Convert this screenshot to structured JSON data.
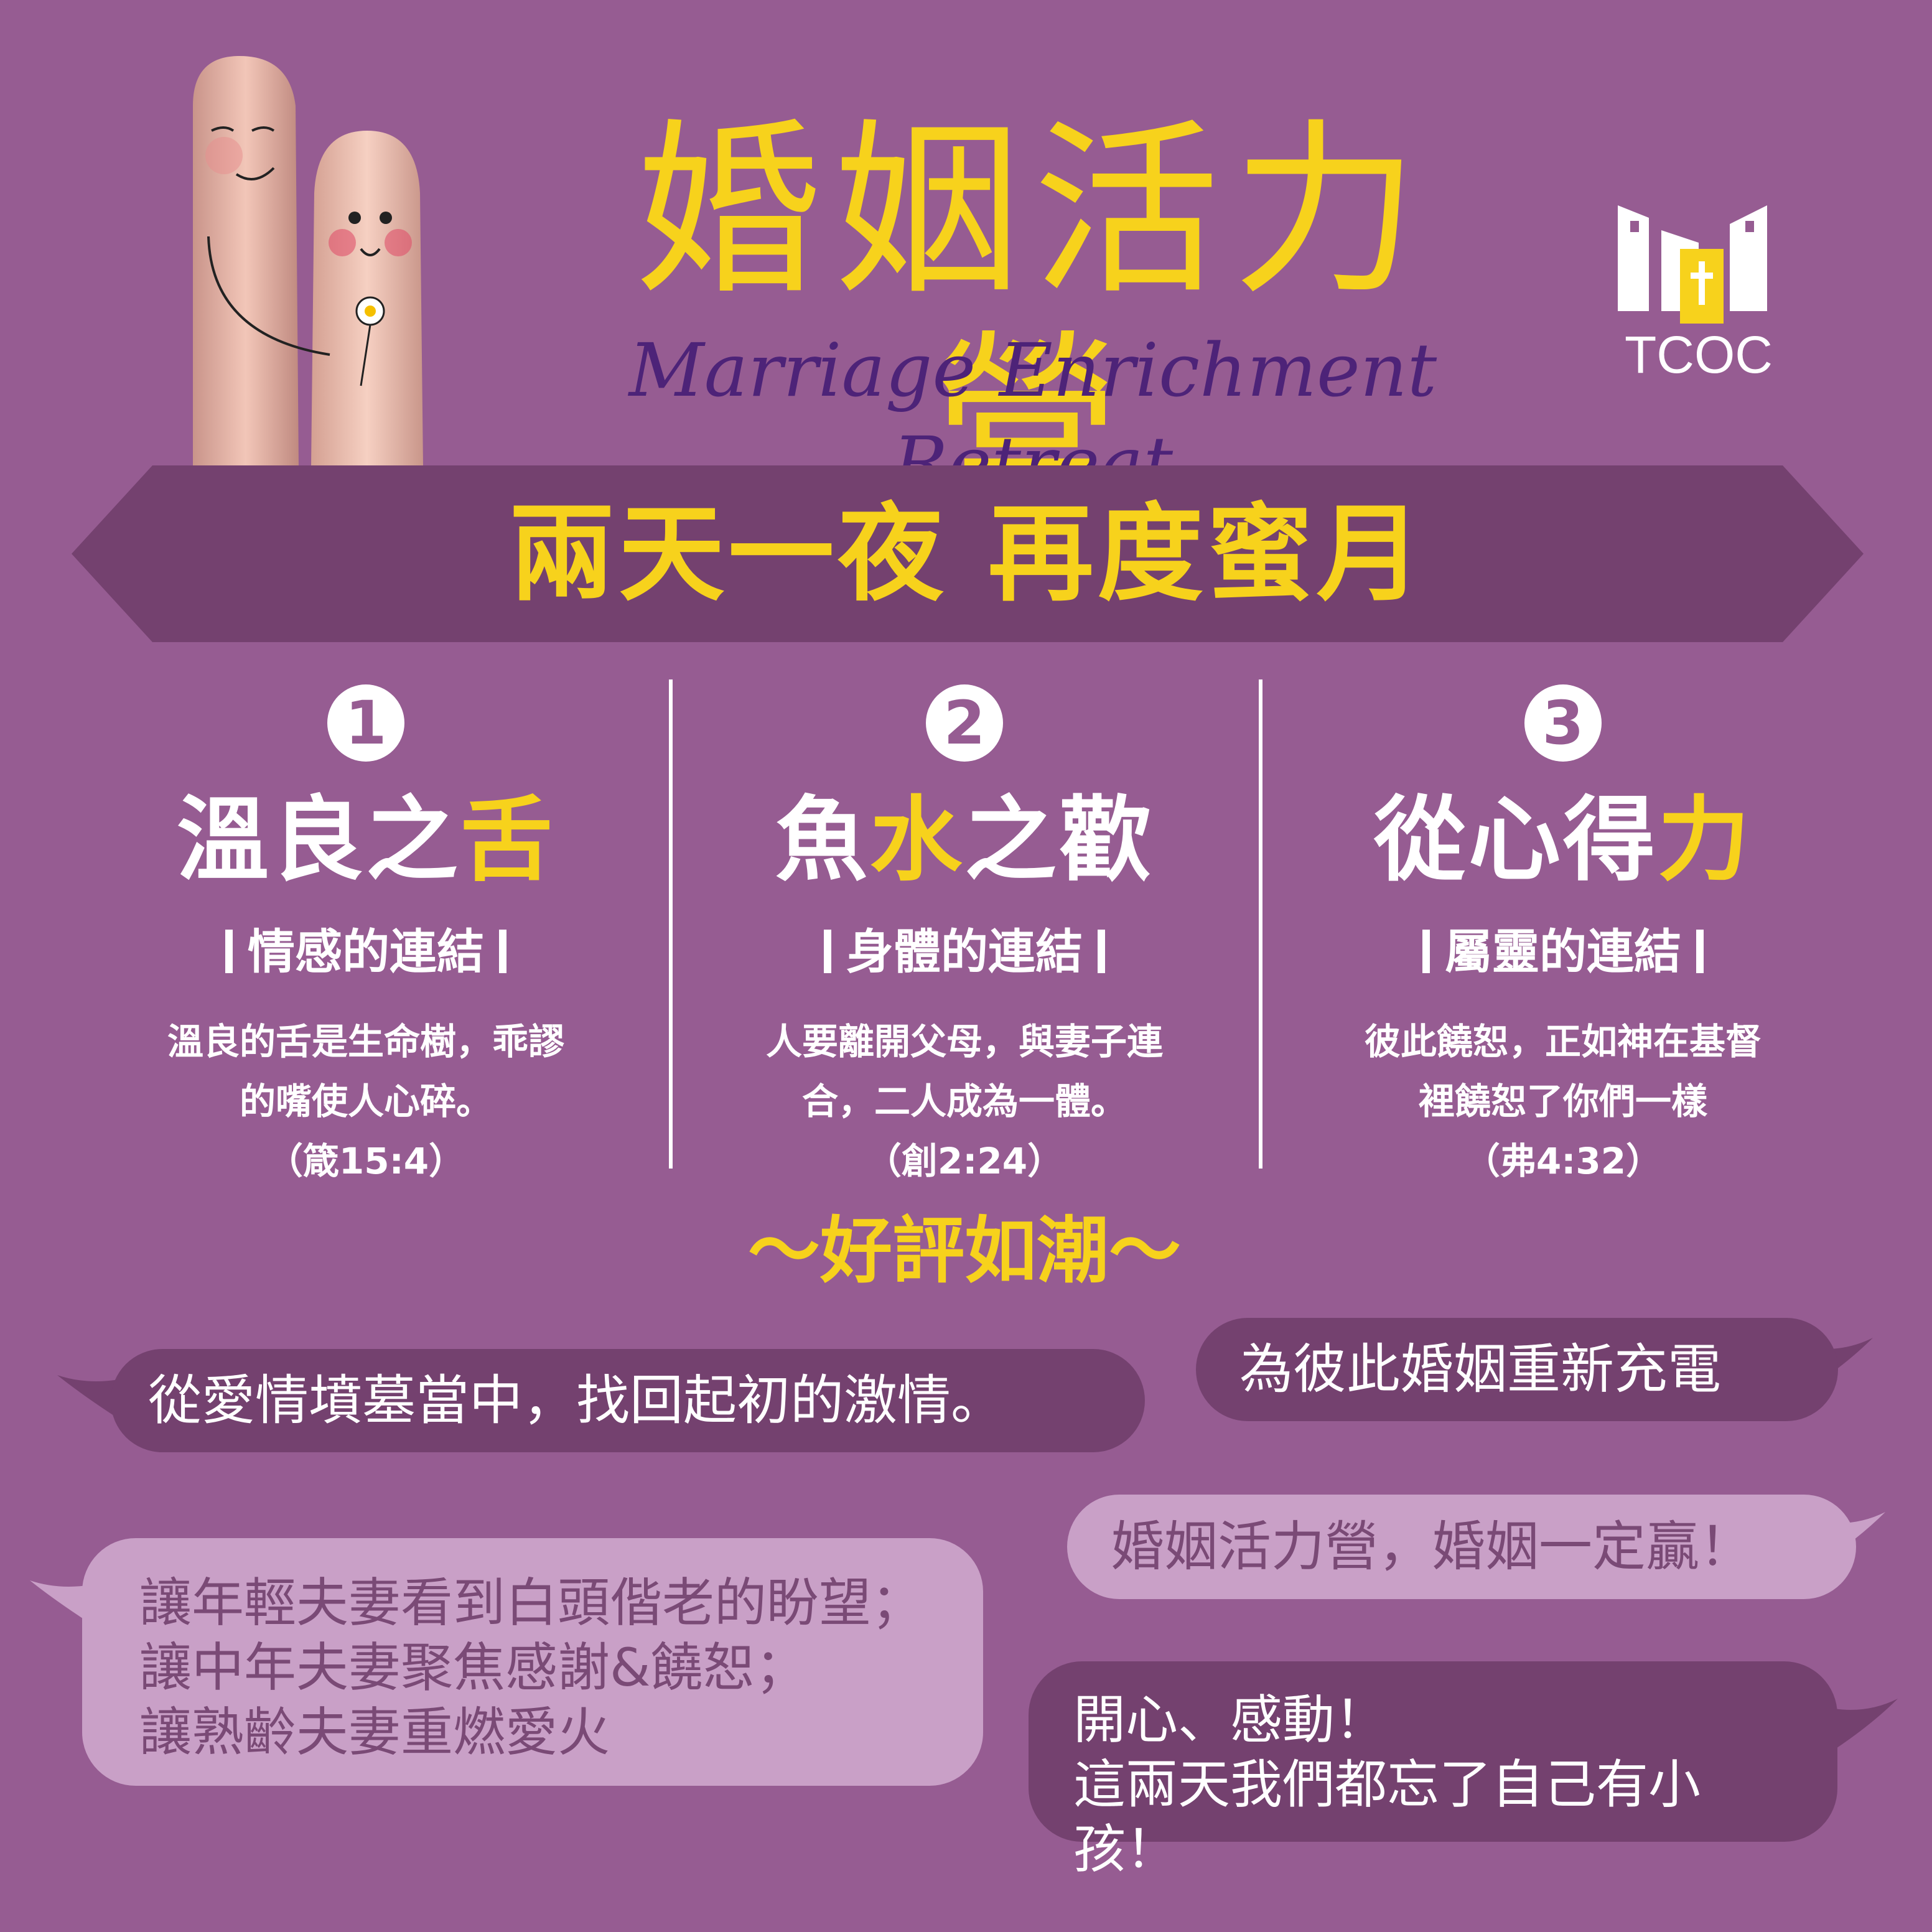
{
  "title": {
    "chinese": "婚姻活力營",
    "english": "Marriage Enrichment Retreat"
  },
  "logo": {
    "text": "TCOC",
    "icon": "church-building-cross-icon"
  },
  "illustration": "finger-couple-illustration",
  "banner": {
    "text": "兩天一夜  再度蜜月"
  },
  "columns": [
    {
      "number": "1",
      "title_pre": "溫良之",
      "title_hl": "舌",
      "title_post": "",
      "subtitle": "情感的連結",
      "verse_line1": "溫良的舌是生命樹，乖謬",
      "verse_line2": "的嘴使人心碎。",
      "reference": "（箴15:4）"
    },
    {
      "number": "2",
      "title_pre": "魚",
      "title_hl": "水",
      "title_post": "之歡",
      "subtitle": "身體的連結",
      "verse_line1": "人要離開父母，與妻子連",
      "verse_line2": "合，二人成為一體。",
      "reference": "（創2:24）"
    },
    {
      "number": "3",
      "title_pre": "從心得",
      "title_hl": "力",
      "title_post": "",
      "subtitle": "屬靈的連結",
      "verse_line1": "彼此饒恕，正如神在基督",
      "verse_line2": "裡饒恕了你們一樣",
      "reference": "（弗4:32）"
    }
  ],
  "reviews": {
    "title": "～好評如潮～",
    "bubble1": "從愛情墳墓當中，找回起初的激情。",
    "bubble2": "為彼此婚姻重新充電",
    "bubble3": "婚姻活力營，婚姻一定贏！",
    "bubble4_line1": "讓年輕夫妻看到白頭偕老的盼望；",
    "bubble4_line2": "讓中年夫妻聚焦感謝&饒恕；",
    "bubble4_line3": "讓熟齡夫妻重燃愛火",
    "bubble5_line1": "開心、感動！",
    "bubble5_line2": "這兩天我們都忘了自己有小孩！"
  },
  "colors": {
    "background": "#965c92",
    "accent": "#f7d21c",
    "banner": "#74416f",
    "bubble_dark": "#74416f",
    "bubble_light": "#c9a0c7"
  }
}
